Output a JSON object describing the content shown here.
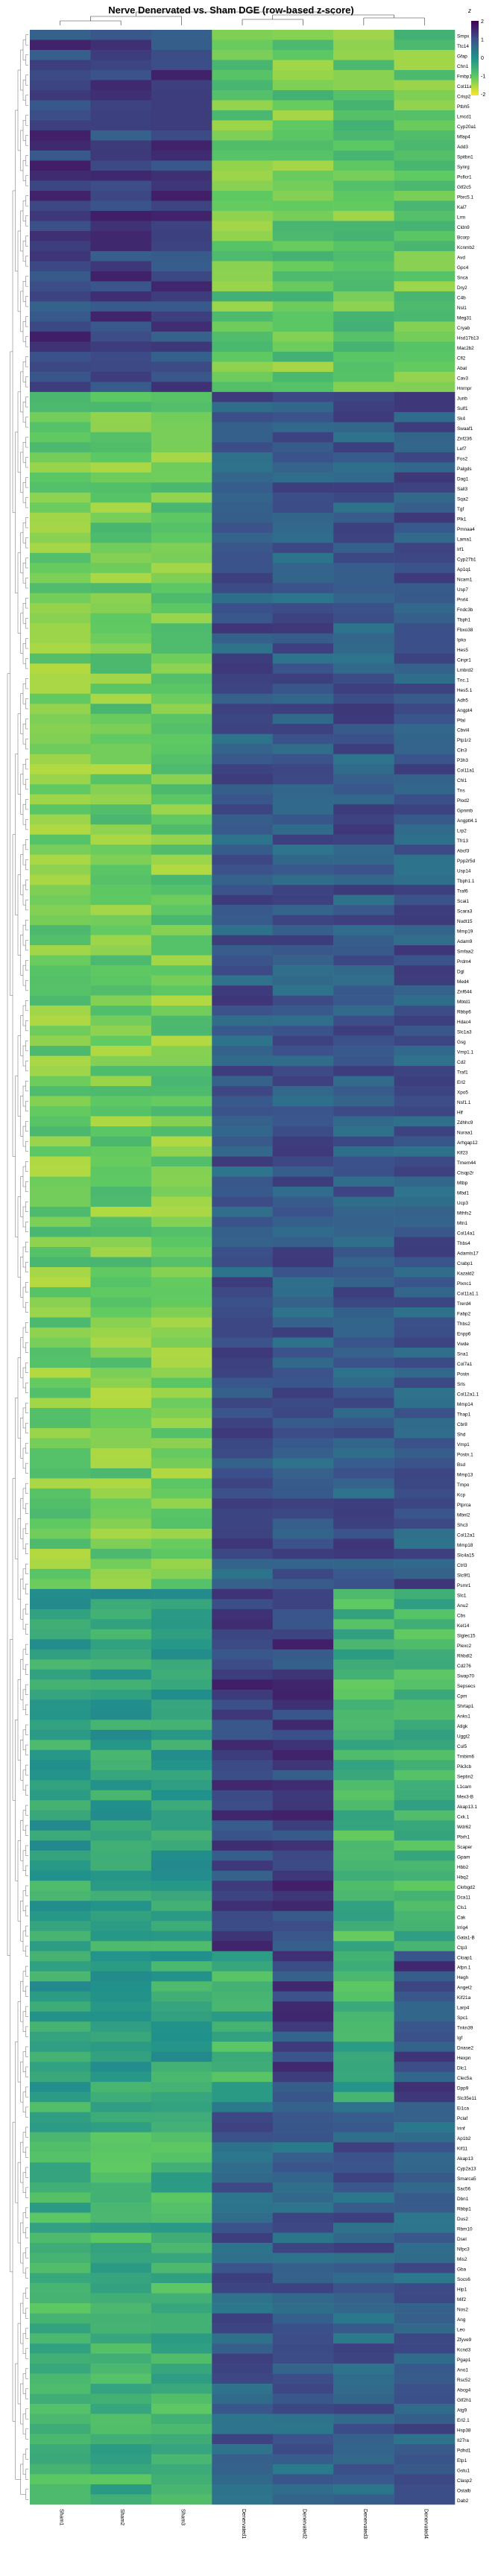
{
  "chart_data": {
    "type": "heatmap",
    "title": "Nerve Denervated vs. Sham DGE (row-based z-score)",
    "columns": [
      "Sham1",
      "Sham2",
      "Sham3",
      "Denervated1",
      "Denervated2",
      "Denervated3",
      "Denervated4"
    ],
    "genes": [
      "Smpx",
      "Ttc14",
      "Gfap",
      "Chn1",
      "Fmbp1",
      "Col11a2",
      "Crisp2",
      "Ptbh5",
      "Lmcd1",
      "Cyp20a1",
      "Mfap4",
      "Add3",
      "Spitbn1",
      "Synrg",
      "Psflcr1",
      "Gtf2c5",
      "Pbrc5.1",
      "Kal7",
      "Lrrn",
      "Cldn9",
      "Bcorp",
      "Kcnmb2",
      "Avd",
      "Gpc4",
      "Snca",
      "Dry2",
      "C4b",
      "Nsl1",
      "Meg31",
      "Cryab",
      "Hsd17b13",
      "Mac2b2",
      "Cfl2",
      "Abat",
      "Cav3",
      "Hnrnpr",
      "Junb",
      "Sulf1",
      "Sk4",
      "Swaaf1",
      "Znf236",
      "Lef7",
      "Fos2",
      "Palgds",
      "Dag1",
      "Sall3",
      "Sqa2",
      "Tgf",
      "Plk1",
      "Pmnaa4",
      "Lama1",
      "Irf1",
      "Cyp27b1",
      "Ap1q1",
      "Ncam1",
      "Usp7",
      "Pnrl4",
      "Fndc3b",
      "Tbph1",
      "Fbxo38",
      "Ipko",
      "Hes5",
      "Cinpr1",
      "Lmbrd2",
      "Tnc.1",
      "Hes5.1",
      "Adh5",
      "Angpt4",
      "Pfal",
      "Cbvl4",
      "Ptp1r2",
      "Cln3",
      "P3h3",
      "Col11a1",
      "Chl1",
      "Tns",
      "Plod2",
      "Gpnmb",
      "Angptl4.1",
      "Lrp2",
      "Tfr13",
      "Abcf3",
      "Ppp2r5d",
      "Usp14",
      "Tbph1.1",
      "Traf6",
      "Scai1",
      "Scara3",
      "Nudt15",
      "Mmp19",
      "Adam9",
      "Smfaa2",
      "Prdm4",
      "Dgl",
      "Med4",
      "Znf644",
      "Mbtd1",
      "Rbbp6",
      "Hdac4",
      "Slc1a3",
      "Gsg",
      "Vmp1.1",
      "Cd2",
      "Traf1",
      "Erl2",
      "Xpo5",
      "Nsf1.1",
      "Hlf",
      "Zdhhc9",
      "Nuraa1",
      "Arhgap12",
      "Klf23",
      "Tmem44",
      "Ctsqp2r",
      "Mtbp",
      "Mbd1",
      "Ucp3",
      "Mthfs2",
      "Mtn1",
      "Col14a1",
      "Thbs4",
      "Adamts17",
      "Crabp1",
      "Kazald2",
      "Plxnc1",
      "Col11a1.1",
      "Trerd4",
      "Fabp2",
      "Thbs2",
      "Enpp6",
      "Vwde",
      "Sna1",
      "Col7a1",
      "Postn",
      "Srls",
      "Col12a1.1",
      "Mmp14",
      "Thap1",
      "Cbr8",
      "Shd",
      "Vmp1",
      "Postn.1",
      "Bsd",
      "Mmp13",
      "Tmpo",
      "Kcp",
      "Ptprca",
      "Mbnl2",
      "Shc3",
      "Col12a1",
      "Mmp18",
      "Slc4a15",
      "Ctrl3",
      "Slc9f1",
      "Psmr1",
      "Slc1",
      "Anu2",
      "Cbs",
      "Kel14",
      "Slglec15",
      "Plexc2",
      "Rhbdl2",
      "Cd276",
      "Swap70",
      "Sepsecs",
      "Cpm",
      "Shrtap1",
      "Anks1",
      "Atlgk",
      "Uggt2",
      "Cul5",
      "Tmbim6",
      "Pik3cb",
      "Septin2",
      "L1cam",
      "Mex3-B",
      "Akap13.1",
      "Cxk.1",
      "Wdr62",
      "Pbrh1",
      "Scaper",
      "Gpam",
      "Hbb2",
      "Hbq2",
      "Ckrbgd2",
      "Dca11",
      "Cls1",
      "Cak",
      "Irrig4",
      "Gata1-B",
      "Ctp3",
      "Cloap1",
      "Afpn.1",
      "Hegh",
      "Angel2",
      "Kif21a",
      "Larp4",
      "Spc1",
      "Tnkn39",
      "Igf",
      "Dnase2",
      "Hexpn",
      "Dlc1",
      "Clec5a",
      "Dpp9",
      "Slc35e11",
      "Ei1ca",
      "Pclaf",
      "Irinf",
      "Ap1b2",
      "Kif11",
      "Akap13",
      "Cyp2a13",
      "Smarca5",
      "Sac56",
      "Dbn1",
      "Rbbp1",
      "Dus2",
      "Rbm10",
      "Dsel",
      "Nfpc3",
      "Mis2",
      "Gba",
      "Socs6",
      "Hip1",
      "Mif2",
      "Nos2",
      "Ang",
      "Leo",
      "Zfyve9",
      "Kcnd3",
      "Pgap1",
      "Ano1",
      "Rsc52",
      "Abcg4",
      "Gtf2h1",
      "Atg9",
      "Erl2.1",
      "Hsp38",
      "Il27ra",
      "Pdhd1",
      "Etp1",
      "Gstu1",
      "Clasp2",
      "Ostalb",
      "Dab2"
    ],
    "value_range": [
      -2,
      2
    ],
    "colormap": [
      "#440154",
      "#3b528b",
      "#21918c",
      "#5ec962",
      "#fde725"
    ],
    "legend": {
      "title": "z",
      "ticks": [
        "2",
        "1",
        "0",
        "-1",
        "-2"
      ],
      "position": "top-right"
    }
  }
}
